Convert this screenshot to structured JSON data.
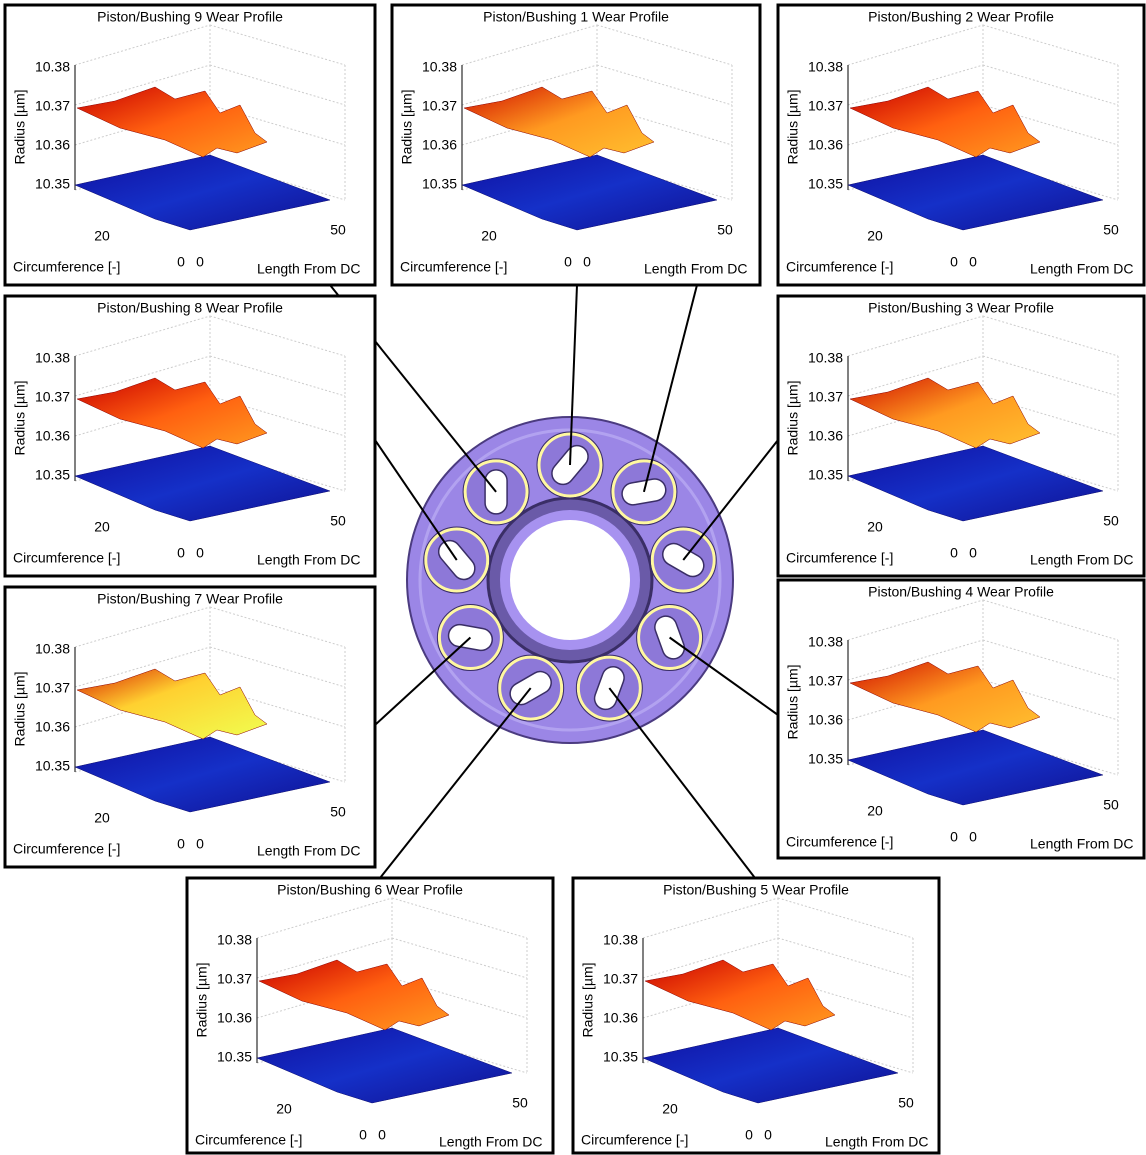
{
  "panels": [
    {
      "title": "Piston/Bushing 9 Wear Profile",
      "z_label": "Radius [µm]",
      "z_ticks": [
        10.38,
        10.37,
        10.36,
        10.35
      ],
      "circumference_label": "Circumference [-]",
      "circumference_ticks": [
        0,
        20
      ],
      "length_label": "Length From DC",
      "length_ticks": [
        0,
        50
      ]
    },
    {
      "title": "Piston/Bushing 1 Wear Profile",
      "z_label": "Radius [µm]",
      "z_ticks": [
        10.38,
        10.37,
        10.36,
        10.35
      ],
      "circumference_label": "Circumference [-]",
      "circumference_ticks": [
        0,
        20
      ],
      "length_label": "Length From DC",
      "length_ticks": [
        0,
        50
      ]
    },
    {
      "title": "Piston/Bushing 2 Wear Profile",
      "z_label": "Radius [µm]",
      "z_ticks": [
        10.38,
        10.37,
        10.36,
        10.35
      ],
      "circumference_label": "Circumference [-]",
      "circumference_ticks": [
        0,
        20
      ],
      "length_label": "Length From DC",
      "length_ticks": [
        0,
        50
      ]
    },
    {
      "title": "Piston/Bushing 8 Wear Profile",
      "z_label": "Radius [µm]",
      "z_ticks": [
        10.38,
        10.37,
        10.36,
        10.35
      ],
      "circumference_label": "Circumference [-]",
      "circumference_ticks": [
        0,
        20
      ],
      "length_label": "Length From DC",
      "length_ticks": [
        0,
        50
      ]
    },
    {
      "title": "Piston/Bushing 3 Wear Profile",
      "z_label": "Radius [µm]",
      "z_ticks": [
        10.38,
        10.37,
        10.36,
        10.35
      ],
      "circumference_label": "Circumference [-]",
      "circumference_ticks": [
        0,
        20
      ],
      "length_label": "Length From DC",
      "length_ticks": [
        0,
        50
      ]
    },
    {
      "title": "Piston/Bushing 7 Wear Profile",
      "z_label": "Radius [µm]",
      "z_ticks": [
        10.38,
        10.37,
        10.36,
        10.35
      ],
      "circumference_label": "Circumference [-]",
      "circumference_ticks": [
        0,
        20
      ],
      "length_label": "Length From DC",
      "length_ticks": [
        0,
        50
      ]
    },
    {
      "title": "Piston/Bushing 4 Wear Profile",
      "z_label": "Radius [µm]",
      "z_ticks": [
        10.38,
        10.37,
        10.36,
        10.35
      ],
      "circumference_label": "Circumference [-]",
      "circumference_ticks": [
        0,
        20
      ],
      "length_label": "Length From DC",
      "length_ticks": [
        0,
        50
      ]
    },
    {
      "title": "Piston/Bushing 6 Wear Profile",
      "z_label": "Radius [µm]",
      "z_ticks": [
        10.38,
        10.37,
        10.36,
        10.35
      ],
      "circumference_label": "Circumference [-]",
      "circumference_ticks": [
        0,
        20
      ],
      "length_label": "Length From DC",
      "length_ticks": [
        0,
        50
      ]
    },
    {
      "title": "Piston/Bushing 5 Wear Profile",
      "z_label": "Radius [µm]",
      "z_ticks": [
        10.38,
        10.37,
        10.36,
        10.35
      ],
      "circumference_label": "Circumference [-]",
      "circumference_ticks": [
        0,
        20
      ],
      "length_label": "Length From DC",
      "length_ticks": [
        0,
        50
      ]
    }
  ]
}
